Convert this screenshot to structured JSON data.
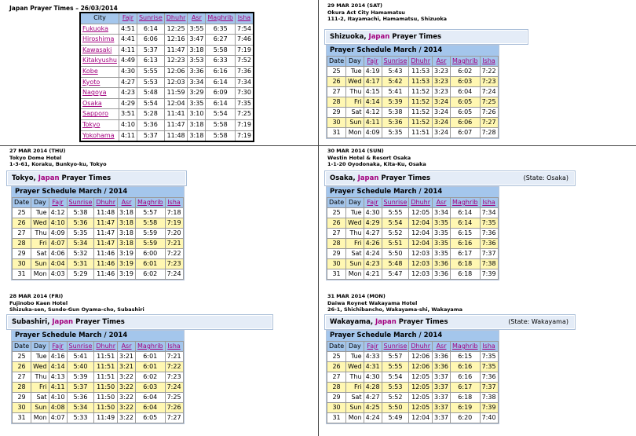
{
  "cities_panel": {
    "title": "Japan Prayer Times – 26/03/2014",
    "headers": [
      "City",
      "Fajr",
      "Sunrise",
      "Dhuhr",
      "Asr",
      "Maghrib",
      "Isha"
    ],
    "rows": [
      [
        "Fukuoka",
        "4:51",
        "6:14",
        "12:25",
        "3:55",
        "6:35",
        "7:54"
      ],
      [
        "Hiroshima",
        "4:41",
        "6:06",
        "12:16",
        "3:47",
        "6:27",
        "7:46"
      ],
      [
        "Kawasaki",
        "4:11",
        "5:37",
        "11:47",
        "3:18",
        "5:58",
        "7:19"
      ],
      [
        "Kitakyushu",
        "4:49",
        "6:13",
        "12:23",
        "3:53",
        "6:33",
        "7:52"
      ],
      [
        "Kobe",
        "4:30",
        "5:55",
        "12:06",
        "3:36",
        "6:16",
        "7:36"
      ],
      [
        "Kyoto",
        "4:27",
        "5:53",
        "12:03",
        "3:34",
        "6:14",
        "7:34"
      ],
      [
        "Nagoya",
        "4:23",
        "5:48",
        "11:59",
        "3:29",
        "6:09",
        "7:30"
      ],
      [
        "Osaka",
        "4:29",
        "5:54",
        "12:04",
        "3:35",
        "6:14",
        "7:35"
      ],
      [
        "Sapporo",
        "3:51",
        "5:28",
        "11:41",
        "3:10",
        "5:54",
        "7:25"
      ],
      [
        "Tokyo",
        "4:10",
        "5:36",
        "11:47",
        "3:18",
        "5:58",
        "7:19"
      ],
      [
        "Yokohama",
        "4:11",
        "5:37",
        "11:48",
        "3:18",
        "5:58",
        "7:19"
      ]
    ]
  },
  "sched_headers": [
    "Date",
    "Day",
    "Fajr",
    "Sunrise",
    "Dhuhr",
    "Asr",
    "Maghrib",
    "Isha"
  ],
  "panels": [
    {
      "date": "29 MAR 2014 (SAT)",
      "venue": "Okura Act City Hamamatsu",
      "address": "111-2, Itayamachi, Hamamatsu, Shizuoka",
      "city": "Shizuoka",
      "country": "Japan",
      "suffix": "Prayer Times",
      "state": "",
      "schedule_title": "Prayer Schedule March / 2014",
      "rows": [
        [
          "25",
          "Tue",
          "4:19",
          "5:43",
          "11:53",
          "3:23",
          "6:02",
          "7:22"
        ],
        [
          "26",
          "Wed",
          "4:17",
          "5:42",
          "11:53",
          "3:23",
          "6:03",
          "7:23"
        ],
        [
          "27",
          "Thu",
          "4:15",
          "5:41",
          "11:52",
          "3:23",
          "6:04",
          "7:24"
        ],
        [
          "28",
          "Fri",
          "4:14",
          "5:39",
          "11:52",
          "3:24",
          "6:05",
          "7:25"
        ],
        [
          "29",
          "Sat",
          "4:12",
          "5:38",
          "11:52",
          "3:24",
          "6:05",
          "7:26"
        ],
        [
          "30",
          "Sun",
          "4:11",
          "5:36",
          "11:52",
          "3:24",
          "6:06",
          "7:27"
        ],
        [
          "31",
          "Mon",
          "4:09",
          "5:35",
          "11:51",
          "3:24",
          "6:07",
          "7:28"
        ]
      ]
    },
    {
      "date": "27 MAR 2014 (THU)",
      "venue": "Tokyo Dome Hotel",
      "address": "1-3-61, Koraku, Bunkyo-ku, Tokyo",
      "city": "Tokyo",
      "country": "Japan",
      "suffix": "Prayer Times",
      "state": "",
      "schedule_title": "Prayer Schedule March / 2014",
      "rows": [
        [
          "25",
          "Tue",
          "4:12",
          "5:38",
          "11:48",
          "3:18",
          "5:57",
          "7:18"
        ],
        [
          "26",
          "Wed",
          "4:10",
          "5:36",
          "11:47",
          "3:18",
          "5:58",
          "7:19"
        ],
        [
          "27",
          "Thu",
          "4:09",
          "5:35",
          "11:47",
          "3:18",
          "5:59",
          "7:20"
        ],
        [
          "28",
          "Fri",
          "4:07",
          "5:34",
          "11:47",
          "3:18",
          "5:59",
          "7:21"
        ],
        [
          "29",
          "Sat",
          "4:06",
          "5:32",
          "11:46",
          "3:19",
          "6:00",
          "7:22"
        ],
        [
          "30",
          "Sun",
          "4:04",
          "5:31",
          "11:46",
          "3:19",
          "6:01",
          "7:23"
        ],
        [
          "31",
          "Mon",
          "4:03",
          "5:29",
          "11:46",
          "3:19",
          "6:02",
          "7:24"
        ]
      ]
    },
    {
      "date": "30 MAR 2014 (SUN)",
      "venue": "Westin Hotel & Resort Osaka",
      "address": "1-1-20 Oyodonaka, Kita-Ku, Osaka",
      "city": "Osaka",
      "country": "Japan",
      "suffix": "Prayer Times",
      "state": "(State: Osaka)",
      "schedule_title": "Prayer Schedule March / 2014",
      "rows": [
        [
          "25",
          "Tue",
          "4:30",
          "5:55",
          "12:05",
          "3:34",
          "6:14",
          "7:34"
        ],
        [
          "26",
          "Wed",
          "4:29",
          "5:54",
          "12:04",
          "3:35",
          "6:14",
          "7:35"
        ],
        [
          "27",
          "Thu",
          "4:27",
          "5:52",
          "12:04",
          "3:35",
          "6:15",
          "7:36"
        ],
        [
          "28",
          "Fri",
          "4:26",
          "5:51",
          "12:04",
          "3:35",
          "6:16",
          "7:36"
        ],
        [
          "29",
          "Sat",
          "4:24",
          "5:50",
          "12:03",
          "3:35",
          "6:17",
          "7:37"
        ],
        [
          "30",
          "Sun",
          "4:23",
          "5:48",
          "12:03",
          "3:36",
          "6:18",
          "7:38"
        ],
        [
          "31",
          "Mon",
          "4:21",
          "5:47",
          "12:03",
          "3:36",
          "6:18",
          "7:39"
        ]
      ]
    },
    {
      "date": "28 MAR 2014 (FRI)",
      "venue": "Fujinobo Kaen Hotel",
      "address": "Shizuka-sen, Sundo-Gun Oyama-cho, Subashiri",
      "city": "Subashiri",
      "country": "Japan",
      "suffix": "Prayer Times",
      "state": "",
      "schedule_title": "Prayer Schedule March / 2014",
      "rows": [
        [
          "25",
          "Tue",
          "4:16",
          "5:41",
          "11:51",
          "3:21",
          "6:01",
          "7:21"
        ],
        [
          "26",
          "Wed",
          "4:14",
          "5:40",
          "11:51",
          "3:21",
          "6:01",
          "7:22"
        ],
        [
          "27",
          "Thu",
          "4:13",
          "5:39",
          "11:51",
          "3:22",
          "6:02",
          "7:23"
        ],
        [
          "28",
          "Fri",
          "4:11",
          "5:37",
          "11:50",
          "3:22",
          "6:03",
          "7:24"
        ],
        [
          "29",
          "Sat",
          "4:10",
          "5:36",
          "11:50",
          "3:22",
          "6:04",
          "7:25"
        ],
        [
          "30",
          "Sun",
          "4:08",
          "5:34",
          "11:50",
          "3:22",
          "6:04",
          "7:26"
        ],
        [
          "31",
          "Mon",
          "4:07",
          "5:33",
          "11:49",
          "3:22",
          "6:05",
          "7:27"
        ]
      ]
    },
    {
      "date": "31 MAR 2014 (MON)",
      "venue": "Daiwa Roynet Wakayama Hotel",
      "address": "26-1, Shichibancho, Wakayama-shi, Wakayama",
      "city": "Wakayama",
      "country": "Japan",
      "suffix": "Prayer Times",
      "state": "(State: Wakayama)",
      "schedule_title": "Prayer Schedule March / 2014",
      "rows": [
        [
          "25",
          "Tue",
          "4:33",
          "5:57",
          "12:06",
          "3:36",
          "6:15",
          "7:35"
        ],
        [
          "26",
          "Wed",
          "4:31",
          "5:55",
          "12:06",
          "3:36",
          "6:16",
          "7:35"
        ],
        [
          "27",
          "Thu",
          "4:30",
          "5:54",
          "12:05",
          "3:37",
          "6:16",
          "7:36"
        ],
        [
          "28",
          "Fri",
          "4:28",
          "5:53",
          "12:05",
          "3:37",
          "6:17",
          "7:37"
        ],
        [
          "29",
          "Sat",
          "4:27",
          "5:52",
          "12:05",
          "3:37",
          "6:18",
          "7:38"
        ],
        [
          "30",
          "Sun",
          "4:25",
          "5:50",
          "12:05",
          "3:37",
          "6:19",
          "7:39"
        ],
        [
          "31",
          "Mon",
          "4:24",
          "5:49",
          "12:04",
          "3:37",
          "6:20",
          "7:40"
        ]
      ]
    }
  ]
}
